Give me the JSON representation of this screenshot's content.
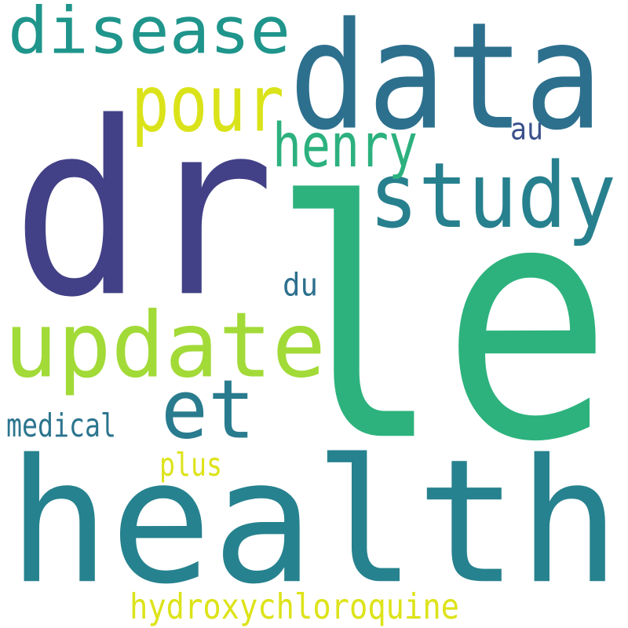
{
  "words": [
    {
      "id": "le",
      "text": "le",
      "color": "#2db27d"
    },
    {
      "id": "dr",
      "text": "dr",
      "color": "#424086"
    },
    {
      "id": "health",
      "text": "health",
      "color": "#26828e"
    },
    {
      "id": "data",
      "text": "data",
      "color": "#2d708e"
    },
    {
      "id": "update",
      "text": "update",
      "color": "#a2da37"
    },
    {
      "id": "study",
      "text": "study",
      "color": "#27808e"
    },
    {
      "id": "disease",
      "text": "disease",
      "color": "#1f958b"
    },
    {
      "id": "pour",
      "text": "pour",
      "color": "#dae319"
    },
    {
      "id": "et",
      "text": "et",
      "color": "#297b8e"
    },
    {
      "id": "henry",
      "text": "henry",
      "color": "#2cb17e"
    },
    {
      "id": "hydroxychloroquine",
      "text": "hydroxychloroquine",
      "color": "#dde318"
    },
    {
      "id": "medical",
      "text": "medical",
      "color": "#2b748e"
    },
    {
      "id": "plus",
      "text": "plus",
      "color": "#dde318"
    },
    {
      "id": "du",
      "text": "du",
      "color": "#2d708e"
    },
    {
      "id": "au",
      "text": "au",
      "color": "#3b518b"
    }
  ]
}
